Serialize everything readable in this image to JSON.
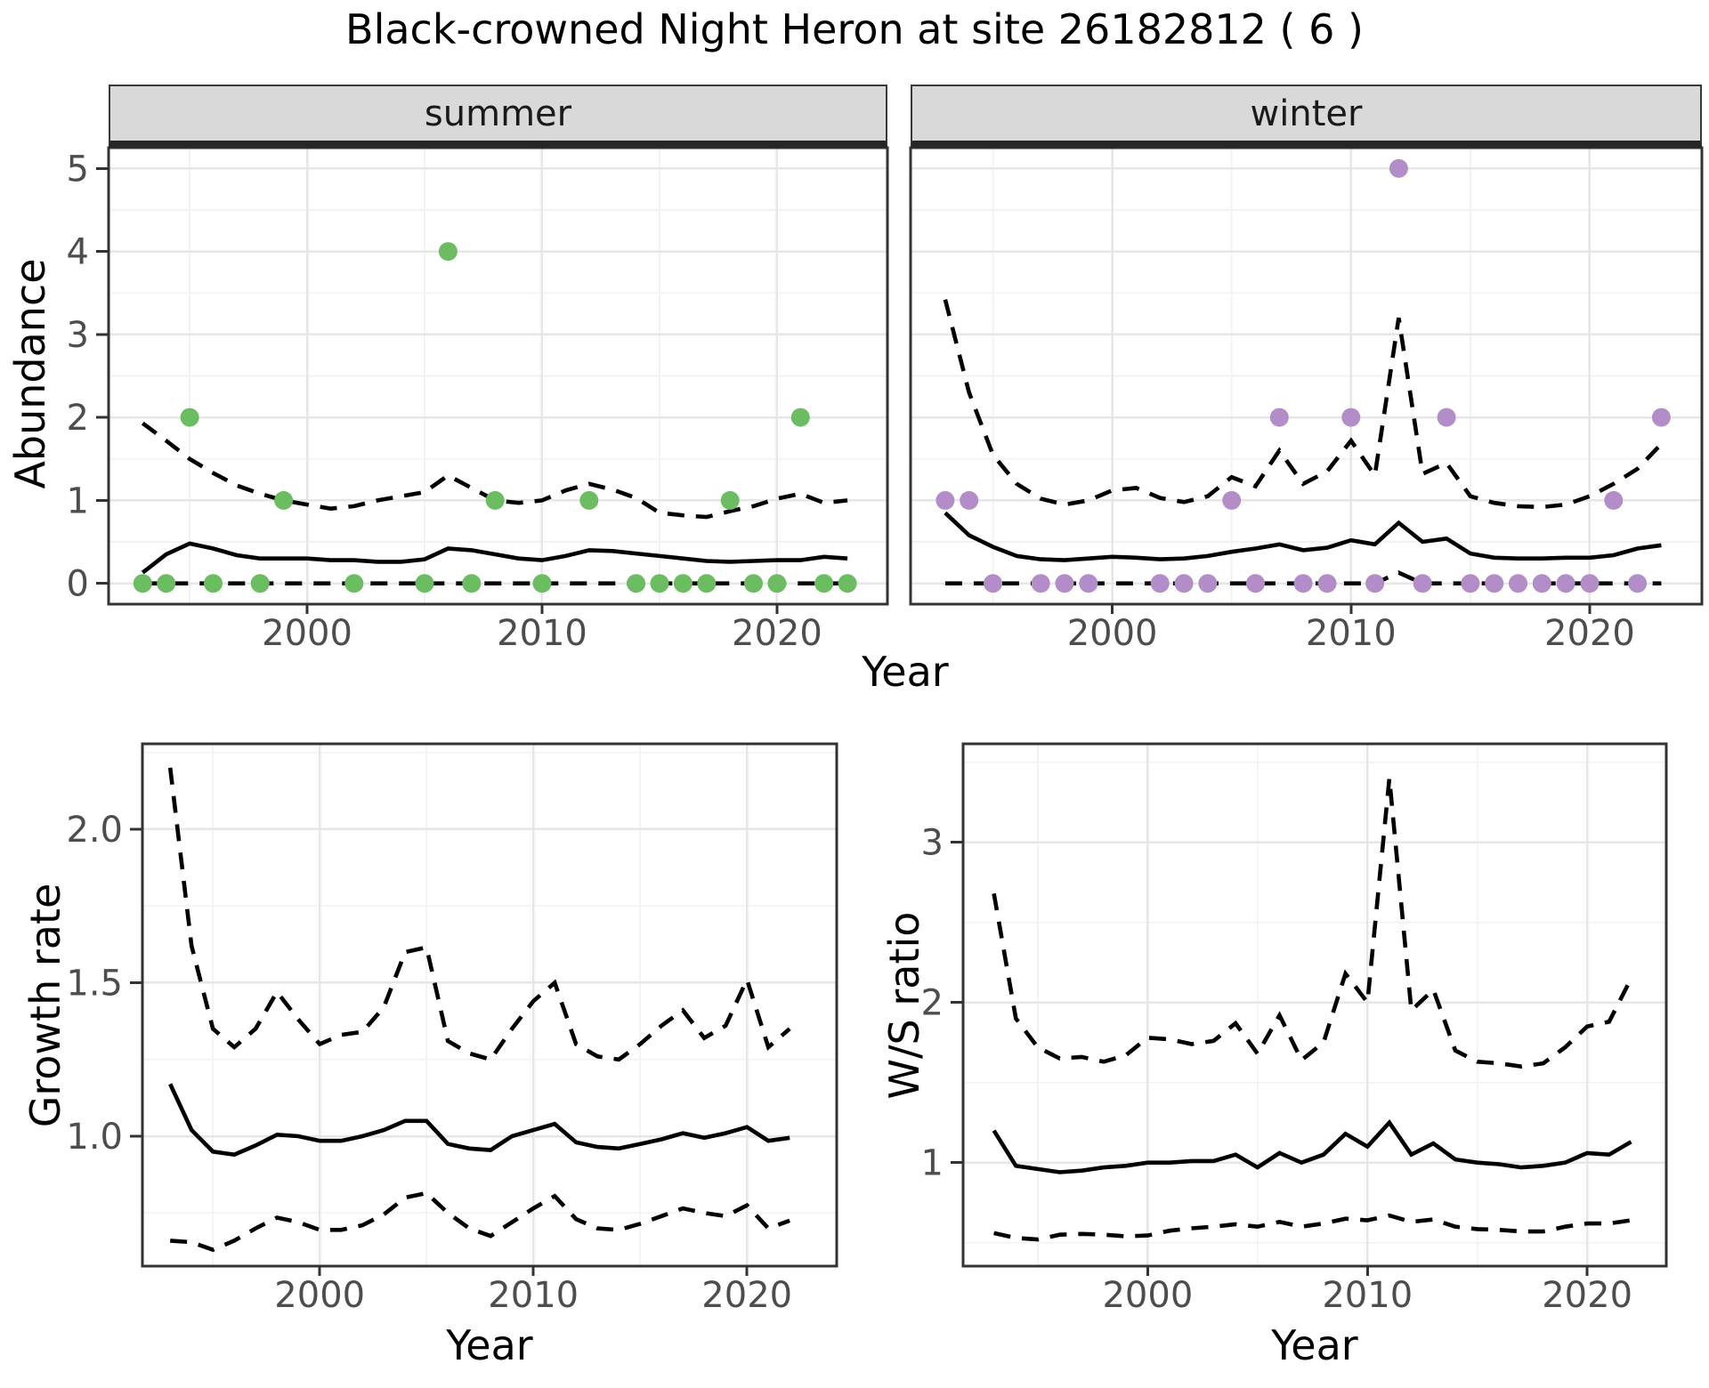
{
  "title": "Black-crowned Night Heron at site 26182812 ( 6 )",
  "axes": {
    "year_label": "Year",
    "abundance_label": "Abundance",
    "growth_label": "Growth rate",
    "ws_label": "W/S ratio"
  },
  "colors": {
    "summer_point": "#6cbd62",
    "winter_point": "#b28dc8",
    "line": "#000000",
    "grid_major": "#e6e6e6",
    "grid_minor": "#f2f2f2",
    "panel_border": "#333333",
    "tick_mark": "#333333",
    "tick_text": "#4d4d4d",
    "panel_bg": "#ffffff"
  },
  "chart_data": [
    {
      "id": "abundance-summer",
      "type": "scatter",
      "facet_label": "summer",
      "xlabel": "Year",
      "ylabel": "Abundance",
      "xlim": [
        1991.55,
        2024.7
      ],
      "ylim": [
        -0.25,
        5.25
      ],
      "xticks": [
        {
          "v": 2000,
          "label": "2000"
        },
        {
          "v": 2010,
          "label": "2010"
        },
        {
          "v": 2020,
          "label": "2020"
        }
      ],
      "yticks": [
        {
          "v": 0,
          "label": "0"
        },
        {
          "v": 1,
          "label": "1"
        },
        {
          "v": 2,
          "label": "2"
        },
        {
          "v": 3,
          "label": "3"
        },
        {
          "v": 4,
          "label": "4"
        },
        {
          "v": 5,
          "label": "5"
        }
      ],
      "xminor": [
        1995,
        2005,
        2015
      ],
      "yminor": [
        0.5,
        1.5,
        2.5,
        3.5,
        4.5
      ],
      "point_color_key": "summer_point",
      "years": [
        1993,
        1994,
        1995,
        1996,
        1997,
        1998,
        1999,
        2000,
        2001,
        2002,
        2003,
        2004,
        2005,
        2006,
        2007,
        2008,
        2009,
        2010,
        2011,
        2012,
        2013,
        2014,
        2015,
        2016,
        2017,
        2018,
        2019,
        2020,
        2021,
        2022,
        2023
      ],
      "fit": [
        0.13,
        0.35,
        0.48,
        0.42,
        0.34,
        0.3,
        0.3,
        0.3,
        0.28,
        0.28,
        0.26,
        0.26,
        0.29,
        0.42,
        0.4,
        0.35,
        0.3,
        0.28,
        0.33,
        0.4,
        0.39,
        0.36,
        0.33,
        0.3,
        0.27,
        0.26,
        0.27,
        0.28,
        0.28,
        0.32,
        0.3
      ],
      "upper": [
        1.93,
        1.72,
        1.5,
        1.33,
        1.18,
        1.08,
        1.0,
        0.95,
        0.9,
        0.93,
        1.0,
        1.05,
        1.1,
        1.3,
        1.15,
        1.0,
        0.97,
        1.0,
        1.12,
        1.2,
        1.13,
        1.03,
        0.85,
        0.82,
        0.8,
        0.87,
        0.93,
        1.02,
        1.08,
        0.97,
        1.0
      ],
      "lower": [
        0,
        0,
        0,
        0,
        0,
        0,
        0,
        0,
        0,
        0,
        0,
        0,
        0,
        0,
        0,
        0,
        0,
        0,
        0,
        0,
        0,
        0,
        0,
        0,
        0,
        0,
        0,
        0,
        0,
        0,
        0
      ],
      "points": [
        [
          1993,
          0
        ],
        [
          1994,
          0
        ],
        [
          1995,
          2
        ],
        [
          1996,
          0
        ],
        [
          1998,
          0
        ],
        [
          1999,
          1
        ],
        [
          2002,
          0
        ],
        [
          2005,
          0
        ],
        [
          2006,
          4
        ],
        [
          2007,
          0
        ],
        [
          2008,
          1
        ],
        [
          2010,
          0
        ],
        [
          2012,
          1
        ],
        [
          2014,
          0
        ],
        [
          2015,
          0
        ],
        [
          2016,
          0
        ],
        [
          2017,
          0
        ],
        [
          2018,
          1
        ],
        [
          2019,
          0
        ],
        [
          2020,
          0
        ],
        [
          2021,
          2
        ],
        [
          2022,
          0
        ],
        [
          2023,
          0
        ]
      ]
    },
    {
      "id": "abundance-winter",
      "type": "scatter",
      "facet_label": "winter",
      "xlabel": "Year",
      "ylabel": "Abundance",
      "xlim": [
        1991.55,
        2024.7
      ],
      "ylim": [
        -0.25,
        5.25
      ],
      "xticks": [
        {
          "v": 2000,
          "label": "2000"
        },
        {
          "v": 2010,
          "label": "2010"
        },
        {
          "v": 2020,
          "label": "2020"
        }
      ],
      "yticks": [],
      "xminor": [
        1995,
        2005,
        2015
      ],
      "yminor": [
        0.5,
        1.5,
        2.5,
        3.5,
        4.5
      ],
      "point_color_key": "winter_point",
      "years": [
        1993,
        1994,
        1995,
        1996,
        1997,
        1998,
        1999,
        2000,
        2001,
        2002,
        2003,
        2004,
        2005,
        2006,
        2007,
        2008,
        2009,
        2010,
        2011,
        2012,
        2013,
        2014,
        2015,
        2016,
        2017,
        2018,
        2019,
        2020,
        2021,
        2022,
        2023
      ],
      "fit": [
        0.85,
        0.58,
        0.44,
        0.33,
        0.29,
        0.28,
        0.3,
        0.32,
        0.31,
        0.29,
        0.3,
        0.33,
        0.38,
        0.42,
        0.47,
        0.4,
        0.43,
        0.52,
        0.47,
        0.73,
        0.5,
        0.54,
        0.36,
        0.31,
        0.3,
        0.3,
        0.31,
        0.31,
        0.34,
        0.42,
        0.46
      ],
      "upper": [
        3.42,
        2.3,
        1.55,
        1.2,
        1.02,
        0.95,
        1.0,
        1.12,
        1.15,
        1.03,
        0.98,
        1.05,
        1.28,
        1.17,
        1.6,
        1.2,
        1.35,
        1.72,
        1.3,
        3.2,
        1.32,
        1.45,
        1.05,
        0.97,
        0.93,
        0.92,
        0.95,
        1.05,
        1.2,
        1.38,
        1.68
      ],
      "lower": [
        0,
        0,
        0,
        0,
        0,
        0,
        0,
        0,
        0,
        0,
        0,
        0,
        0,
        0,
        0,
        0,
        0,
        0,
        0,
        0.13,
        0,
        0,
        0,
        0,
        0,
        0,
        0,
        0,
        0,
        0,
        0
      ],
      "points": [
        [
          1993,
          1
        ],
        [
          1994,
          1
        ],
        [
          1995,
          0
        ],
        [
          1997,
          0
        ],
        [
          1998,
          0
        ],
        [
          1999,
          0
        ],
        [
          2002,
          0
        ],
        [
          2003,
          0
        ],
        [
          2004,
          0
        ],
        [
          2005,
          1
        ],
        [
          2006,
          0
        ],
        [
          2007,
          2
        ],
        [
          2008,
          0
        ],
        [
          2009,
          0
        ],
        [
          2010,
          2
        ],
        [
          2011,
          0
        ],
        [
          2012,
          5
        ],
        [
          2013,
          0
        ],
        [
          2014,
          2
        ],
        [
          2015,
          0
        ],
        [
          2016,
          0
        ],
        [
          2017,
          0
        ],
        [
          2018,
          0
        ],
        [
          2019,
          0
        ],
        [
          2020,
          0
        ],
        [
          2021,
          1
        ],
        [
          2022,
          0
        ],
        [
          2023,
          2
        ]
      ]
    },
    {
      "id": "growth-rate",
      "type": "line",
      "facet_label": "",
      "xlabel": "Year",
      "ylabel": "Growth rate",
      "xlim": [
        1991.7,
        2024.2
      ],
      "ylim": [
        0.577,
        2.278
      ],
      "xticks": [
        {
          "v": 2000,
          "label": "2000"
        },
        {
          "v": 2010,
          "label": "2010"
        },
        {
          "v": 2020,
          "label": "2020"
        }
      ],
      "yticks": [
        {
          "v": 1.0,
          "label": "1.0"
        },
        {
          "v": 1.5,
          "label": "1.5"
        },
        {
          "v": 2.0,
          "label": "2.0"
        }
      ],
      "xminor": [
        1995,
        2005,
        2015
      ],
      "yminor": [
        0.75,
        1.25,
        1.75,
        2.25
      ],
      "point_color_key": null,
      "years": [
        1993,
        1994,
        1995,
        1996,
        1997,
        1998,
        1999,
        2000,
        2001,
        2002,
        2003,
        2004,
        2005,
        2006,
        2007,
        2008,
        2009,
        2010,
        2011,
        2012,
        2013,
        2014,
        2015,
        2016,
        2017,
        2018,
        2019,
        2020,
        2021,
        2022
      ],
      "fit": [
        1.17,
        1.02,
        0.95,
        0.94,
        0.97,
        1.005,
        1.0,
        0.985,
        0.985,
        1.0,
        1.02,
        1.05,
        1.05,
        0.975,
        0.96,
        0.955,
        1.0,
        1.02,
        1.04,
        0.98,
        0.965,
        0.96,
        0.975,
        0.99,
        1.01,
        0.995,
        1.01,
        1.03,
        0.985,
        0.995
      ],
      "upper": [
        2.2,
        1.62,
        1.35,
        1.29,
        1.35,
        1.47,
        1.38,
        1.3,
        1.33,
        1.34,
        1.42,
        1.6,
        1.615,
        1.31,
        1.27,
        1.25,
        1.35,
        1.44,
        1.5,
        1.3,
        1.26,
        1.25,
        1.3,
        1.36,
        1.41,
        1.32,
        1.36,
        1.51,
        1.29,
        1.35
      ],
      "lower": [
        0.66,
        0.655,
        0.63,
        0.66,
        0.7,
        0.735,
        0.72,
        0.695,
        0.695,
        0.71,
        0.745,
        0.8,
        0.815,
        0.75,
        0.7,
        0.675,
        0.72,
        0.765,
        0.805,
        0.73,
        0.7,
        0.695,
        0.715,
        0.74,
        0.765,
        0.75,
        0.74,
        0.775,
        0.7,
        0.725
      ],
      "points": []
    },
    {
      "id": "ws-ratio",
      "type": "line",
      "facet_label": "",
      "xlabel": "Year",
      "ylabel": "W/S ratio",
      "xlim": [
        1991.6,
        2023.6
      ],
      "ylim": [
        0.354,
        3.615
      ],
      "xticks": [
        {
          "v": 2000,
          "label": "2000"
        },
        {
          "v": 2010,
          "label": "2010"
        },
        {
          "v": 2020,
          "label": "2020"
        }
      ],
      "yticks": [
        {
          "v": 1,
          "label": "1"
        },
        {
          "v": 2,
          "label": "2"
        },
        {
          "v": 3,
          "label": "3"
        }
      ],
      "xminor": [
        1995,
        2005,
        2015
      ],
      "yminor": [
        0.5,
        1.5,
        2.5,
        3.5
      ],
      "point_color_key": null,
      "years": [
        1993,
        1994,
        1995,
        1996,
        1997,
        1998,
        1999,
        2000,
        2001,
        2002,
        2003,
        2004,
        2005,
        2006,
        2007,
        2008,
        2009,
        2010,
        2011,
        2012,
        2013,
        2014,
        2015,
        2016,
        2017,
        2018,
        2019,
        2020,
        2021,
        2022
      ],
      "fit": [
        1.2,
        0.98,
        0.96,
        0.94,
        0.95,
        0.97,
        0.98,
        1.0,
        1.0,
        1.01,
        1.01,
        1.05,
        0.97,
        1.06,
        1.0,
        1.05,
        1.18,
        1.1,
        1.25,
        1.05,
        1.12,
        1.02,
        1.0,
        0.99,
        0.97,
        0.98,
        1.0,
        1.06,
        1.05,
        1.13
      ],
      "upper": [
        2.68,
        1.9,
        1.72,
        1.65,
        1.66,
        1.63,
        1.67,
        1.78,
        1.77,
        1.74,
        1.76,
        1.87,
        1.68,
        1.92,
        1.64,
        1.75,
        2.18,
        2.0,
        3.4,
        1.95,
        2.08,
        1.7,
        1.63,
        1.62,
        1.6,
        1.62,
        1.72,
        1.85,
        1.88,
        2.15
      ],
      "lower": [
        0.56,
        0.53,
        0.52,
        0.55,
        0.555,
        0.55,
        0.54,
        0.545,
        0.575,
        0.59,
        0.6,
        0.615,
        0.6,
        0.63,
        0.6,
        0.62,
        0.65,
        0.64,
        0.67,
        0.63,
        0.645,
        0.6,
        0.585,
        0.58,
        0.57,
        0.57,
        0.6,
        0.62,
        0.62,
        0.64
      ],
      "points": []
    }
  ]
}
